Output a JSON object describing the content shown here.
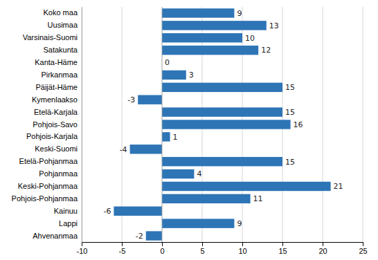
{
  "chart_data": {
    "type": "bar",
    "orientation": "horizontal",
    "categories": [
      "Ahvenanmaa",
      "Lappi",
      "Kainuu",
      "Pohjois-Pohjanmaa",
      "Keski-Pohjanmaa",
      "Pohjanmaa",
      "Etelä-Pohjanmaa",
      "Keski-Suomi",
      "Pohjois-Karjala",
      "Pohjois-Savo",
      "Etelä-Karjala",
      "Kymenlaakso",
      "Päijät-Häme",
      "Pirkanmaa",
      "Kanta-Häme",
      "Satakunta",
      "Varsinais-Suomi",
      "Uusimaa",
      "Koko maa"
    ],
    "values": [
      -2,
      9,
      -6,
      11,
      21,
      4,
      15,
      -4,
      1,
      16,
      15,
      -3,
      15,
      3,
      0,
      12,
      10,
      13,
      9
    ],
    "color": "#2E75B6",
    "xlim": [
      -10,
      25
    ],
    "xticks": [
      -10,
      -5,
      0,
      5,
      10,
      15,
      20,
      25
    ],
    "grid": true,
    "data_labels": true
  }
}
